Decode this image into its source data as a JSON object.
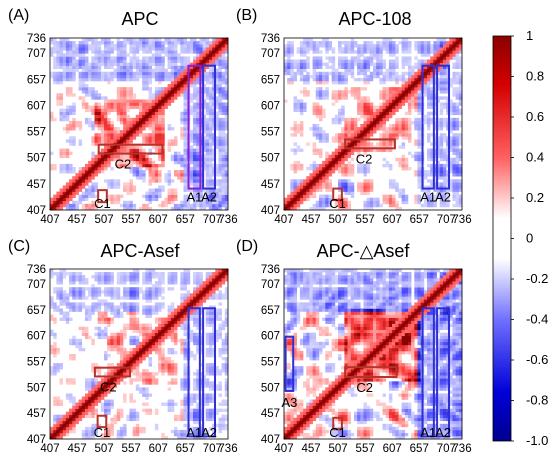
{
  "chart_data": {
    "type": "heatmap",
    "colorscale": {
      "range": [
        -1.0,
        1
      ],
      "ticks": [
        "1",
        "0.8",
        "0.6",
        "0.4",
        "0.2",
        "0",
        "-0.2",
        "-0.4",
        "-0.6",
        "-0.8",
        "-1.0"
      ],
      "colors": {
        "low": "#00008f",
        "mid": "#ffffff",
        "high": "#8b0000"
      }
    },
    "axis_range": [
      407,
      736
    ],
    "xticks": [
      "407",
      "457",
      "507",
      "557",
      "607",
      "657",
      "707",
      "736"
    ],
    "yticks": [
      "736",
      "707",
      "657",
      "607",
      "557",
      "507",
      "457",
      "407"
    ],
    "panels": [
      {
        "letter": "(A)",
        "title": "APC",
        "seed": 11,
        "strength": 0.85,
        "diag_box": [
          490,
          620,
          0.75
        ],
        "regions": [
          {
            "label": "C1",
            "color": "#b5332a",
            "x": [
              496,
              512
            ],
            "y": [
              422,
              445
            ]
          },
          {
            "label": "C2",
            "color": "#b5332a",
            "x": [
              497,
              615
            ],
            "y": [
              515,
              532
            ]
          },
          {
            "label": "A1",
            "color": "#8b1fd6",
            "x": [
              663,
              685
            ],
            "y": [
              448,
              683
            ]
          },
          {
            "label": "A2",
            "color": "#2f2fd6",
            "x": [
              690,
              712
            ],
            "y": [
              448,
              683
            ]
          }
        ]
      },
      {
        "letter": "(B)",
        "title": "APC-108",
        "seed": 23,
        "strength": 0.7,
        "diag_box": [
          520,
          640,
          0.35
        ],
        "regions": [
          {
            "label": "C1",
            "color": "#b5332a",
            "x": [
              498,
              514
            ],
            "y": [
              426,
              448
            ]
          },
          {
            "label": "C2",
            "color": "#b5332a",
            "x": [
              520,
              612
            ],
            "y": [
              525,
              542
            ]
          },
          {
            "label": "A1",
            "color": "#2f2fd6",
            "x": [
              663,
              684
            ],
            "y": [
              448,
              683
            ]
          },
          {
            "label": "A2",
            "color": "#2f2fd6",
            "x": [
              690,
              712
            ],
            "y": [
              448,
              683
            ]
          }
        ]
      },
      {
        "letter": "(C)",
        "title": "APC-Asef",
        "seed": 37,
        "strength": 0.55,
        "diag_box": [
          510,
          640,
          0.3
        ],
        "regions": [
          {
            "label": "C1",
            "color": "#b5332a",
            "x": [
              495,
              511
            ],
            "y": [
              430,
              452
            ]
          },
          {
            "label": "C2",
            "color": "#b5332a",
            "x": [
              490,
              555
            ],
            "y": [
              528,
              545
            ]
          },
          {
            "label": "A1",
            "color": "#2f2fd6",
            "x": [
              663,
              684
            ],
            "y": [
              412,
              660
            ]
          },
          {
            "label": "A2",
            "color": "#2f2fd6",
            "x": [
              690,
              712
            ],
            "y": [
              412,
              660
            ]
          }
        ]
      },
      {
        "letter": "(D)",
        "title": "APC-△Asef",
        "seed": 53,
        "strength": 1.0,
        "diag_box": [
          520,
          660,
          0.95
        ],
        "regions": [
          {
            "label": "A3",
            "color": "#2f2fd6",
            "x": [
              410,
              424
            ],
            "y": [
              500,
              605
            ]
          },
          {
            "label": "C1",
            "color": "#b5332a",
            "x": [
              498,
              514
            ],
            "y": [
              426,
              448
            ]
          },
          {
            "label": "C2",
            "color": "#b5332a",
            "x": [
              520,
              615
            ],
            "y": [
              527,
              546
            ]
          },
          {
            "label": "A1",
            "color": "#2f2fd6",
            "x": [
              663,
              684
            ],
            "y": [
              412,
              660
            ]
          },
          {
            "label": "A2",
            "color": "#2f2fd6",
            "x": [
              690,
              712
            ],
            "y": [
              412,
              660
            ]
          }
        ]
      }
    ]
  }
}
